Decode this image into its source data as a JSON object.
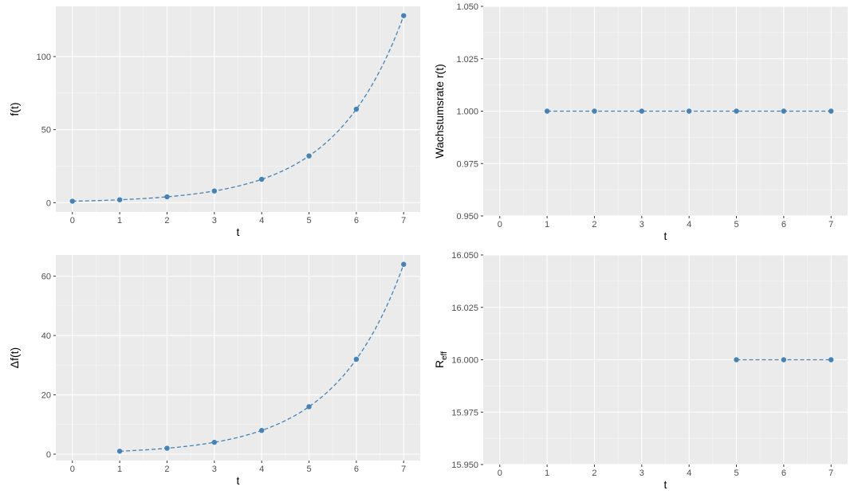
{
  "colors": {
    "panel_background": "#ebebeb",
    "grid_major": "#ffffff",
    "series": "#4682b4"
  },
  "chart_data": [
    {
      "type": "line",
      "line_style": "dashed with points",
      "xlabel": "t",
      "ylabel": "f(t)",
      "x_ticks": [
        0,
        1,
        2,
        3,
        4,
        5,
        6,
        7
      ],
      "xlim": [
        -0.35,
        7.35
      ],
      "y_ticks": [
        0,
        50,
        100
      ],
      "ylim": [
        -6.35,
        134.35
      ],
      "y_tick_decimals": 0,
      "grid": true,
      "series": [
        {
          "x": [
            0,
            1,
            2,
            3,
            4,
            5,
            6,
            7
          ],
          "y": [
            1,
            2,
            4,
            8,
            16,
            32,
            64,
            128
          ]
        }
      ]
    },
    {
      "type": "line",
      "line_style": "dashed with points",
      "xlabel": "t",
      "ylabel": "Wachstumsrate r(t)",
      "x_ticks": [
        0,
        1,
        2,
        3,
        4,
        5,
        6,
        7
      ],
      "xlim": [
        -0.35,
        7.35
      ],
      "y_ticks": [
        0.95,
        0.975,
        1.0,
        1.025,
        1.05
      ],
      "ylim": [
        0.95,
        1.05
      ],
      "y_tick_decimals": 3,
      "grid": true,
      "series": [
        {
          "x": [
            1,
            2,
            3,
            4,
            5,
            6,
            7
          ],
          "y": [
            1,
            1,
            1,
            1,
            1,
            1,
            1
          ]
        }
      ]
    },
    {
      "type": "line",
      "line_style": "dashed with points",
      "xlabel": "t",
      "ylabel": "Δf(t)",
      "x_ticks": [
        0,
        1,
        2,
        3,
        4,
        5,
        6,
        7
      ],
      "xlim": [
        -0.35,
        7.35
      ],
      "y_ticks": [
        0,
        20,
        40,
        60
      ],
      "ylim": [
        -2.15,
        67.15
      ],
      "y_tick_decimals": 0,
      "grid": true,
      "series": [
        {
          "x": [
            1,
            2,
            3,
            4,
            5,
            6,
            7
          ],
          "y": [
            1,
            2,
            4,
            8,
            16,
            32,
            64
          ]
        }
      ]
    },
    {
      "type": "line",
      "line_style": "dashed with points",
      "xlabel": "t",
      "ylabel": "R",
      "ylabel_subscript": "eff",
      "x_ticks": [
        0,
        1,
        2,
        3,
        4,
        5,
        6,
        7
      ],
      "xlim": [
        -0.35,
        7.35
      ],
      "y_ticks": [
        15.95,
        15.975,
        16.0,
        16.025,
        16.05
      ],
      "ylim": [
        15.95,
        16.05
      ],
      "y_tick_decimals": 3,
      "grid": true,
      "series": [
        {
          "x": [
            5,
            6,
            7
          ],
          "y": [
            16,
            16,
            16
          ]
        }
      ]
    }
  ]
}
